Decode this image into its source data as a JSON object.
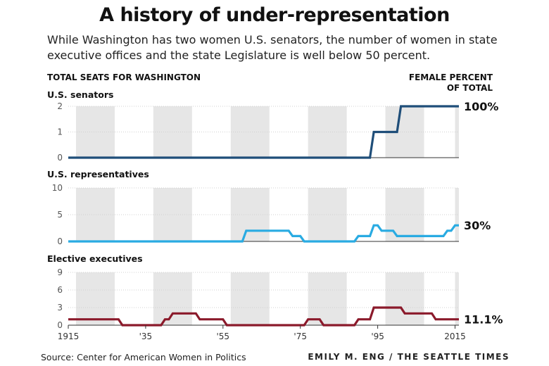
{
  "title": "A history of under-representation",
  "subtitle": "While Washington has two women U.S. senators, the number of women in state executive offices and the state Legislature is well below 50 percent.",
  "left_header": "TOTAL SEATS FOR WASHINGTON",
  "right_header": [
    "FEMALE PERCENT",
    "OF TOTAL"
  ],
  "source": "Source: Center for American Women in Politics",
  "credit": "EMILY M. ENG / THE SEATTLE TIMES",
  "colors": {
    "senators": "#1f4e79",
    "representatives": "#29abe2",
    "executives": "#8b1a2b",
    "band": "#e6e6e6",
    "grid": "#d0d0d0",
    "axis": "#333333"
  },
  "chart_data": [
    {
      "type": "line",
      "title": "U.S. senators",
      "x_ticks": [
        1915,
        1935,
        1955,
        1975,
        1995,
        2015
      ],
      "x_tick_labels": [
        "1915",
        "'35",
        "'55",
        "'75",
        "'95",
        "2015"
      ],
      "xlim": [
        1915,
        2016
      ],
      "ylim": [
        0,
        2
      ],
      "y_ticks": [
        0,
        1,
        2
      ],
      "shaded_periods": [
        [
          1917,
          1927
        ],
        [
          1937,
          1947
        ],
        [
          1957,
          1967
        ],
        [
          1977,
          1987
        ],
        [
          1997,
          2007
        ],
        [
          2015,
          2016
        ]
      ],
      "series": [
        {
          "points": [
            [
              1915,
              0
            ],
            [
              1993,
              0
            ],
            [
              1994,
              1
            ],
            [
              2000,
              1
            ],
            [
              2001,
              2
            ],
            [
              2016,
              2
            ]
          ]
        }
      ],
      "end_label": "100%"
    },
    {
      "type": "line",
      "title": "U.S. representatives",
      "x_ticks": [
        1915,
        1935,
        1955,
        1975,
        1995,
        2015
      ],
      "xlim": [
        1915,
        2016
      ],
      "ylim": [
        0,
        10
      ],
      "y_ticks": [
        0,
        5,
        10
      ],
      "shaded_periods": [
        [
          1917,
          1927
        ],
        [
          1937,
          1947
        ],
        [
          1957,
          1967
        ],
        [
          1977,
          1987
        ],
        [
          1997,
          2007
        ],
        [
          2015,
          2016
        ]
      ],
      "series": [
        {
          "points": [
            [
              1915,
              0
            ],
            [
              1960,
              0
            ],
            [
              1961,
              2
            ],
            [
              1972,
              2
            ],
            [
              1973,
              1
            ],
            [
              1975,
              1
            ],
            [
              1976,
              0
            ],
            [
              1989,
              0
            ],
            [
              1990,
              1
            ],
            [
              1993,
              1
            ],
            [
              1994,
              3
            ],
            [
              1995,
              3
            ],
            [
              1996,
              2
            ],
            [
              1999,
              2
            ],
            [
              2000,
              1
            ],
            [
              2012,
              1
            ],
            [
              2013,
              2
            ],
            [
              2014,
              2
            ],
            [
              2015,
              3
            ],
            [
              2016,
              3
            ]
          ]
        }
      ],
      "end_label": "30%"
    },
    {
      "type": "line",
      "title": "Elective executives",
      "x_ticks": [
        1915,
        1935,
        1955,
        1975,
        1995,
        2015
      ],
      "x_tick_labels": [
        "1915",
        "'35",
        "'55",
        "'75",
        "'95",
        "2015"
      ],
      "xlim": [
        1915,
        2016
      ],
      "ylim": [
        0,
        9
      ],
      "y_ticks": [
        0,
        3,
        6,
        9
      ],
      "shaded_periods": [
        [
          1917,
          1927
        ],
        [
          1937,
          1947
        ],
        [
          1957,
          1967
        ],
        [
          1977,
          1987
        ],
        [
          1997,
          2007
        ],
        [
          2015,
          2016
        ]
      ],
      "series": [
        {
          "points": [
            [
              1915,
              1
            ],
            [
              1928,
              1
            ],
            [
              1929,
              0
            ],
            [
              1939,
              0
            ],
            [
              1940,
              1
            ],
            [
              1941,
              1
            ],
            [
              1942,
              2
            ],
            [
              1948,
              2
            ],
            [
              1949,
              1
            ],
            [
              1955,
              1
            ],
            [
              1956,
              0
            ],
            [
              1976,
              0
            ],
            [
              1977,
              1
            ],
            [
              1980,
              1
            ],
            [
              1981,
              0
            ],
            [
              1989,
              0
            ],
            [
              1990,
              1
            ],
            [
              1993,
              1
            ],
            [
              1994,
              3
            ],
            [
              2001,
              3
            ],
            [
              2002,
              2
            ],
            [
              2009,
              2
            ],
            [
              2010,
              1
            ],
            [
              2016,
              1
            ]
          ]
        }
      ],
      "end_label": "11.1%"
    }
  ]
}
